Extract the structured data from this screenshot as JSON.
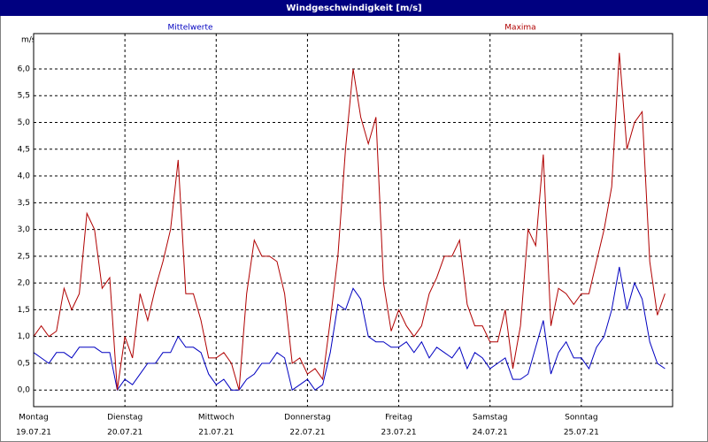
{
  "chart_data": {
    "type": "line",
    "title": "Windgeschwindigkeit [m/s]",
    "ylabel": "m/s",
    "xlim": [
      0,
      168
    ],
    "ylim": [
      -0.31,
      6.66
    ],
    "grid": true,
    "xticks": [
      {
        "value": 0,
        "label": "Montag"
      },
      {
        "value": 24,
        "label": "Dienstag"
      },
      {
        "value": 48,
        "label": "Mittwoch"
      },
      {
        "value": 72,
        "label": "Donnerstag"
      },
      {
        "value": 96,
        "label": "Freitag"
      },
      {
        "value": 120,
        "label": "Samstag"
      },
      {
        "value": 144,
        "label": "Sonntag"
      }
    ],
    "xtick_dates": [
      "19.07.21",
      "20.07.21",
      "21.07.21",
      "22.07.21",
      "23.07.21",
      "24.07.21",
      "25.07.21"
    ],
    "yticks": [
      {
        "value": 0,
        "label": "0,0"
      },
      {
        "value": 0.5,
        "label": "0,5"
      },
      {
        "value": 1,
        "label": "1,0"
      },
      {
        "value": 1.5,
        "label": "1,5"
      },
      {
        "value": 2,
        "label": "2,0"
      },
      {
        "value": 2.5,
        "label": "2,5"
      },
      {
        "value": 3,
        "label": "3,0"
      },
      {
        "value": 3.5,
        "label": "3,5"
      },
      {
        "value": 4,
        "label": "4,0"
      },
      {
        "value": 4.5,
        "label": "4,5"
      },
      {
        "value": 5,
        "label": "5,0"
      },
      {
        "value": 5.5,
        "label": "5,5"
      },
      {
        "value": 6,
        "label": "6,0"
      }
    ],
    "x": [
      0,
      2,
      4,
      6,
      8,
      10,
      12,
      14,
      16,
      18,
      20,
      22,
      24,
      26,
      28,
      30,
      32,
      34,
      36,
      38,
      40,
      42,
      44,
      46,
      48,
      50,
      52,
      54,
      56,
      58,
      60,
      62,
      64,
      66,
      68,
      70,
      72,
      74,
      76,
      78,
      80,
      82,
      84,
      86,
      88,
      90,
      92,
      94,
      96,
      98,
      100,
      102,
      104,
      106,
      108,
      110,
      112,
      114,
      116,
      118,
      120,
      122,
      124,
      126,
      128,
      130,
      132,
      134,
      136,
      138,
      140,
      142,
      144,
      146,
      148,
      150,
      152,
      154,
      156,
      158,
      160,
      162,
      164,
      166
    ],
    "series": [
      {
        "name": "Mittelwerte",
        "color": "#0000c0",
        "values": [
          0.7,
          0.6,
          0.5,
          0.7,
          0.7,
          0.6,
          0.8,
          0.8,
          0.8,
          0.7,
          0.7,
          0.0,
          0.2,
          0.1,
          0.3,
          0.5,
          0.5,
          0.7,
          0.7,
          1.0,
          0.8,
          0.8,
          0.7,
          0.3,
          0.1,
          0.2,
          0.0,
          0.0,
          0.2,
          0.3,
          0.5,
          0.5,
          0.7,
          0.6,
          0.0,
          0.1,
          0.2,
          0.0,
          0.1,
          0.7,
          1.6,
          1.5,
          1.9,
          1.7,
          1.0,
          0.9,
          0.9,
          0.8,
          0.8,
          0.9,
          0.7,
          0.9,
          0.6,
          0.8,
          0.7,
          0.6,
          0.8,
          0.4,
          0.7,
          0.6,
          0.4,
          0.5,
          0.6,
          0.2,
          0.2,
          0.3,
          0.8,
          1.3,
          0.3,
          0.7,
          0.9,
          0.6,
          0.6,
          0.4,
          0.8,
          1.0,
          1.5,
          2.3,
          1.5,
          2.0,
          1.7,
          0.9,
          0.5,
          0.4
        ]
      },
      {
        "name": "Maxima",
        "color": "#b00000",
        "values": [
          1.0,
          1.2,
          1.0,
          1.1,
          1.9,
          1.5,
          1.8,
          3.3,
          3.0,
          1.9,
          2.1,
          0.0,
          1.0,
          0.6,
          1.8,
          1.3,
          1.9,
          2.4,
          3.0,
          4.3,
          1.8,
          1.8,
          1.3,
          0.6,
          0.6,
          0.7,
          0.5,
          0.0,
          1.8,
          2.8,
          2.5,
          2.5,
          2.4,
          1.8,
          0.5,
          0.6,
          0.3,
          0.4,
          0.2,
          1.3,
          2.5,
          4.5,
          6.0,
          5.1,
          4.6,
          5.1,
          2.0,
          1.1,
          1.5,
          1.2,
          1.0,
          1.2,
          1.8,
          2.1,
          2.5,
          2.5,
          2.8,
          1.6,
          1.2,
          1.2,
          0.9,
          0.9,
          1.5,
          0.4,
          1.2,
          3.0,
          2.7,
          4.4,
          1.2,
          1.9,
          1.8,
          1.6,
          1.8,
          1.8,
          2.4,
          3.0,
          3.8,
          6.3,
          4.5,
          5.0,
          5.2,
          2.4,
          1.4,
          1.8
        ]
      }
    ]
  }
}
